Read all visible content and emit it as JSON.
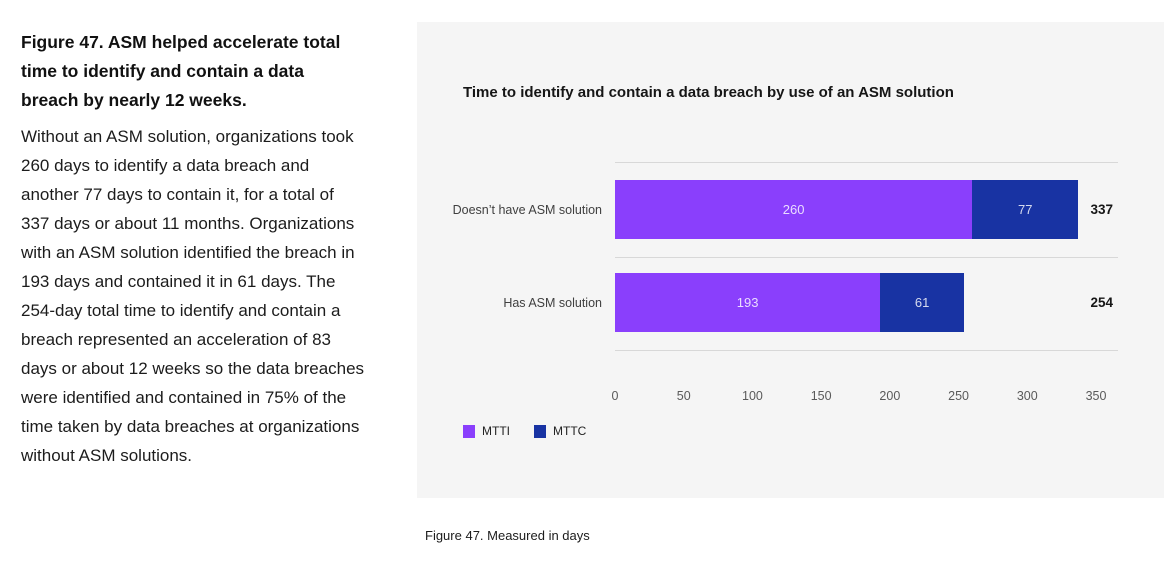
{
  "left_column": {
    "heading": "Figure 47. ASM helped accelerate total time to identify and contain a data breach by nearly 12 weeks.",
    "body": "Without an ASM solution, organizations took 260 days to identify a data breach and another 77 days to contain it, for a total of 337 days or about 11 months. Organizations with an ASM solution identified the breach in 193 days and contained it in 61 days. The 254-day total time to identify and contain a breach represented an acceleration of 83 days or about 12 weeks so the data breaches were identified and contained in 75% of the time taken by data breaches at organizations without ASM solutions."
  },
  "chart": {
    "title": "Time to identify and contain a data breach by use of an ASM solution",
    "caption": "Figure 47. Measured in days"
  },
  "colors": {
    "panel_background": "#f5f5f5",
    "mtti_purple": "#8a3ffc",
    "mttc_blue": "#1833a3"
  },
  "chart_data": {
    "type": "bar",
    "orientation": "horizontal",
    "stacked": true,
    "title": "Time to identify and contain a data breach by use of an ASM solution",
    "categories": [
      "Doesn’t have ASM solution",
      "Has ASM solution"
    ],
    "series": [
      {
        "name": "MTTI",
        "color": "#8a3ffc",
        "values": [
          260,
          193
        ]
      },
      {
        "name": "MTTC",
        "color": "#1833a3",
        "values": [
          77,
          61
        ]
      }
    ],
    "totals": [
      337,
      254
    ],
    "xticks": [
      0,
      50,
      100,
      150,
      200,
      250,
      300,
      350
    ],
    "xlim": [
      0,
      366
    ],
    "unit": "days",
    "xlabel": "",
    "ylabel": "",
    "legend": [
      "MTTI",
      "MTTC"
    ],
    "legend_position": "bottom-left",
    "grid": "row-separator-lines"
  }
}
